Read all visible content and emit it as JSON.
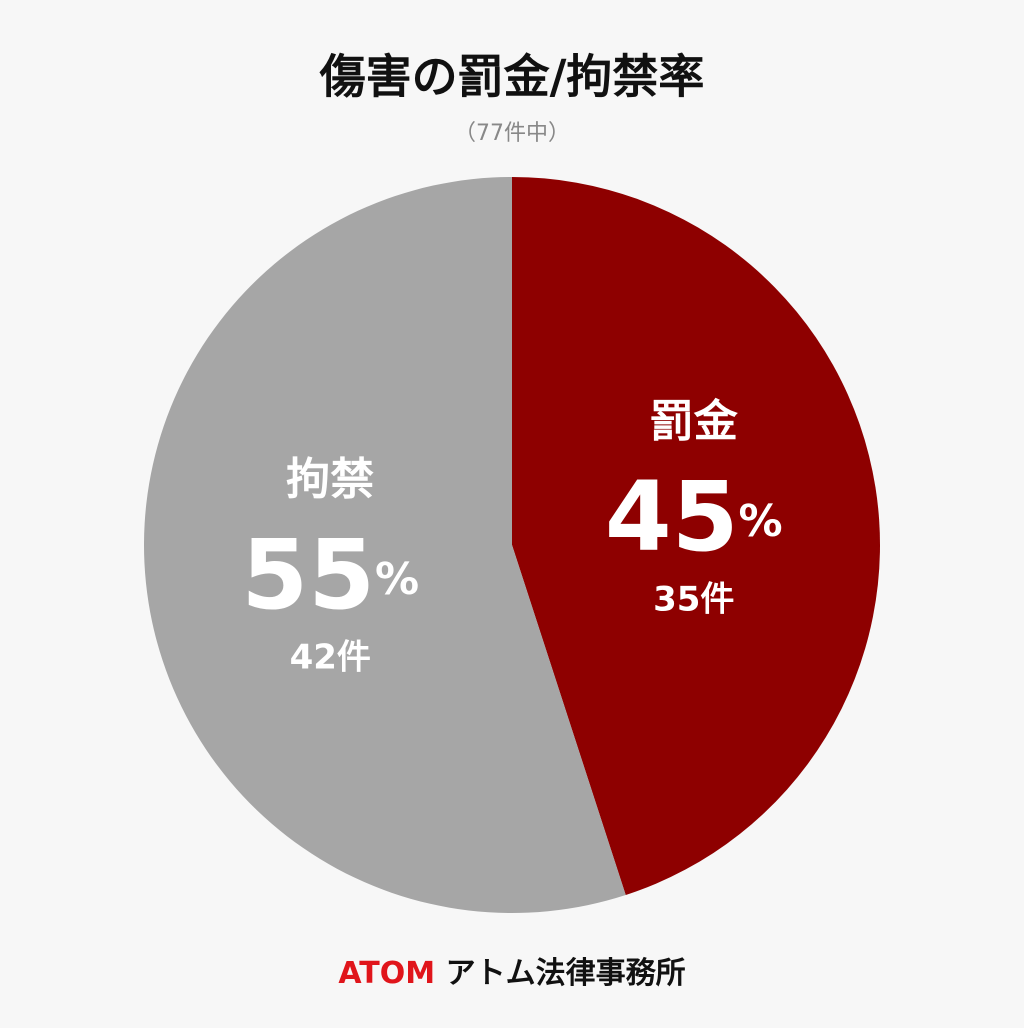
{
  "chart_data": {
    "type": "pie",
    "title": "傷害の罰金/拘禁率",
    "subtitle": "（77件中）",
    "categories": [
      "罰金",
      "拘禁"
    ],
    "values": [
      45,
      55
    ],
    "value_labels": [
      "45%",
      "55%"
    ],
    "counts": [
      "35件",
      "42件"
    ],
    "colors": [
      "#8e0000",
      "#a6a6a6"
    ]
  },
  "footer": {
    "logo": "ATOM",
    "name": "アトム法律事務所"
  }
}
